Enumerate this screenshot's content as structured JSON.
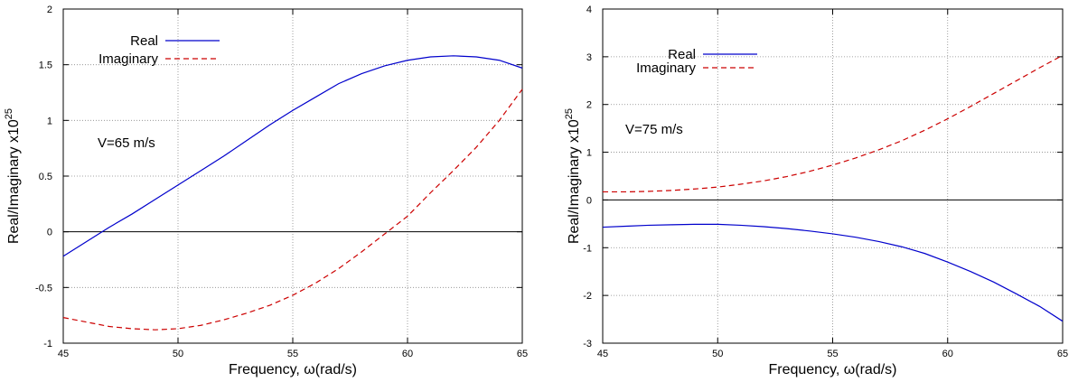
{
  "chart_data": [
    {
      "type": "line",
      "title": "",
      "xlabel": "Frequency, ω(rad/s)",
      "ylabel": "Real/Imaginary",
      "ylabel_multiplier": "x10",
      "ylabel_exponent": "25",
      "annotation": "V=65 m/s",
      "xlim": [
        45,
        65
      ],
      "ylim": [
        -1,
        2
      ],
      "xticks": [
        45,
        50,
        55,
        60,
        65
      ],
      "yticks": [
        -1,
        -0.5,
        0,
        0.5,
        1,
        1.5,
        2
      ],
      "ytick_labels": [
        "-1",
        "-0.5",
        "0",
        "0.5",
        "1",
        "1.5",
        "2"
      ],
      "grid": true,
      "legend_position": "top-left",
      "series": [
        {
          "name": "Real",
          "color": "#0000cc",
          "dash": "solid",
          "x": [
            45,
            46,
            47,
            48,
            49,
            50,
            51,
            52,
            53,
            54,
            55,
            56,
            57,
            58,
            59,
            60,
            61,
            62,
            63,
            64,
            65
          ],
          "y": [
            -0.22,
            -0.09,
            0.04,
            0.16,
            0.29,
            0.42,
            0.55,
            0.68,
            0.82,
            0.96,
            1.09,
            1.21,
            1.33,
            1.42,
            1.49,
            1.54,
            1.57,
            1.58,
            1.57,
            1.54,
            1.47
          ]
        },
        {
          "name": "Imaginary",
          "color": "#cc0000",
          "dash": "dashed",
          "x": [
            45,
            46,
            47,
            48,
            49,
            50,
            51,
            52,
            53,
            54,
            55,
            56,
            57,
            58,
            59,
            60,
            61,
            62,
            63,
            64,
            65
          ],
          "y": [
            -0.77,
            -0.81,
            -0.85,
            -0.87,
            -0.88,
            -0.87,
            -0.84,
            -0.79,
            -0.73,
            -0.66,
            -0.57,
            -0.46,
            -0.33,
            -0.18,
            -0.02,
            0.14,
            0.35,
            0.55,
            0.76,
            1.0,
            1.28
          ]
        }
      ]
    },
    {
      "type": "line",
      "title": "",
      "xlabel": "Frequency, ω(rad/s)",
      "ylabel": "Real/Imaginary",
      "ylabel_multiplier": "x10",
      "ylabel_exponent": "25",
      "annotation": "V=75 m/s",
      "xlim": [
        45,
        65
      ],
      "ylim": [
        -3,
        4
      ],
      "xticks": [
        45,
        50,
        55,
        60,
        65
      ],
      "yticks": [
        -3,
        -2,
        -1,
        0,
        1,
        2,
        3,
        4
      ],
      "ytick_labels": [
        "-3",
        "-2",
        "-1",
        "0",
        "1",
        "2",
        "3",
        "4"
      ],
      "grid": true,
      "legend_position": "top-left",
      "series": [
        {
          "name": "Real",
          "color": "#0000cc",
          "dash": "solid",
          "x": [
            45,
            46,
            47,
            48,
            49,
            50,
            51,
            52,
            53,
            54,
            55,
            56,
            57,
            58,
            59,
            60,
            61,
            62,
            63,
            64,
            65
          ],
          "y": [
            -0.57,
            -0.55,
            -0.53,
            -0.52,
            -0.51,
            -0.51,
            -0.53,
            -0.56,
            -0.6,
            -0.65,
            -0.71,
            -0.78,
            -0.87,
            -0.98,
            -1.12,
            -1.3,
            -1.5,
            -1.72,
            -1.97,
            -2.23,
            -2.54
          ]
        },
        {
          "name": "Imaginary",
          "color": "#cc0000",
          "dash": "dashed",
          "x": [
            45,
            46,
            47,
            48,
            49,
            50,
            51,
            52,
            53,
            54,
            55,
            56,
            57,
            58,
            59,
            60,
            61,
            62,
            63,
            64,
            65
          ],
          "y": [
            0.17,
            0.17,
            0.18,
            0.2,
            0.23,
            0.27,
            0.33,
            0.4,
            0.49,
            0.6,
            0.73,
            0.88,
            1.05,
            1.24,
            1.46,
            1.7,
            1.96,
            2.23,
            2.5,
            2.77,
            3.03
          ]
        }
      ]
    }
  ]
}
